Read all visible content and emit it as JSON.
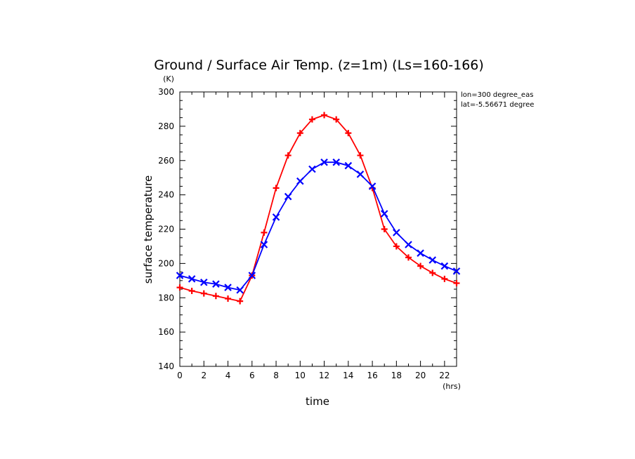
{
  "chart_data": {
    "type": "line",
    "title": "Ground / Surface Air Temp. (z=1m) (Ls=160-166)",
    "xlabel": "time",
    "ylabel": "surface temperature",
    "x_unit": "(hrs)",
    "y_unit": "(K)",
    "annotations": [
      "lon=300 degree_eas",
      "lat=-5.56671 degree"
    ],
    "xlim": [
      0,
      23
    ],
    "ylim": [
      140,
      300
    ],
    "x_ticks": [
      0,
      2,
      4,
      6,
      8,
      10,
      12,
      14,
      16,
      18,
      20,
      22
    ],
    "y_ticks": [
      140,
      160,
      180,
      200,
      220,
      240,
      260,
      280,
      300
    ],
    "grid": false,
    "series": [
      {
        "color": "#ff0000",
        "marker": "plus",
        "x": [
          0,
          1,
          2,
          3,
          4,
          5,
          6,
          7,
          8,
          9,
          10,
          11,
          12,
          13,
          14,
          15,
          16,
          17,
          18,
          19,
          20,
          21,
          22,
          23
        ],
        "values": [
          186,
          184,
          182.5,
          181,
          179.5,
          178,
          193,
          218,
          244,
          263,
          276,
          284,
          286.5,
          284,
          276,
          263,
          244,
          220,
          210,
          203.5,
          198.5,
          194.5,
          191,
          188.5
        ]
      },
      {
        "color": "#0000ff",
        "marker": "x",
        "x": [
          0,
          1,
          2,
          3,
          4,
          5,
          6,
          7,
          8,
          9,
          10,
          11,
          12,
          13,
          14,
          15,
          16,
          17,
          18,
          19,
          20,
          21,
          22,
          23
        ],
        "values": [
          193,
          191,
          189,
          188,
          186,
          184.5,
          193,
          211,
          227,
          239,
          248,
          255,
          259,
          259,
          257,
          252,
          245,
          229,
          218,
          211,
          206,
          202,
          198.5,
          195.5
        ]
      }
    ]
  }
}
